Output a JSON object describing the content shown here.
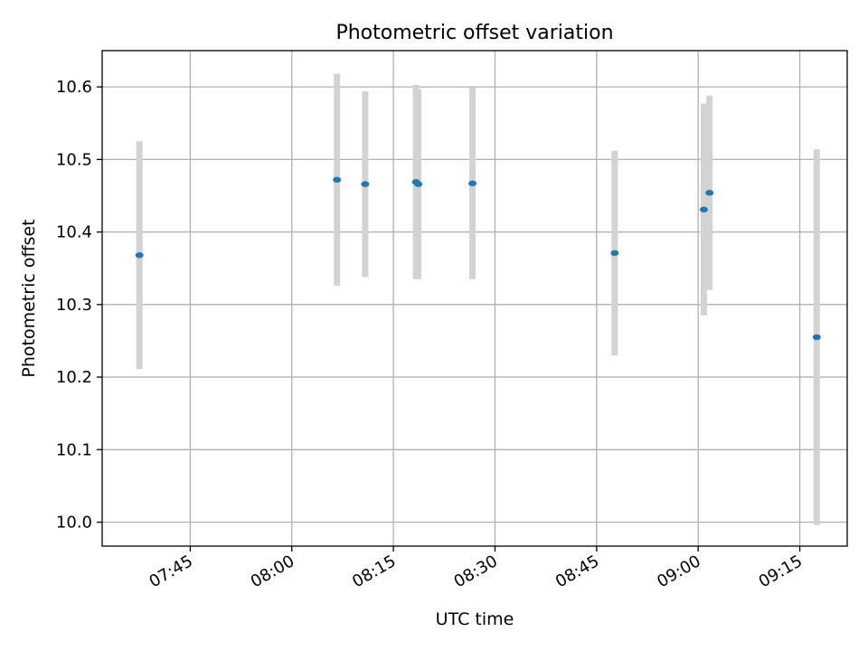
{
  "chart_data": {
    "type": "scatter",
    "title": "Photometric offset variation",
    "xlabel": "UTC time",
    "ylabel": "Photometric offset",
    "x_is_time": true,
    "xlim": [
      "07:32",
      "09:22"
    ],
    "ylim": [
      9.967,
      10.65
    ],
    "x_ticks": [
      "07:45",
      "08:00",
      "08:15",
      "08:30",
      "08:45",
      "09:00",
      "09:15"
    ],
    "y_ticks": [
      "10.0",
      "10.1",
      "10.2",
      "10.3",
      "10.4",
      "10.5",
      "10.6"
    ],
    "grid": true,
    "colors": {
      "points": "#1f77b4",
      "error_bars": "#d3d3d3"
    },
    "points": [
      {
        "x": "07:37:30",
        "y": 10.368,
        "err": 0.157
      },
      {
        "x": "08:06:40",
        "y": 10.472,
        "err": 0.146
      },
      {
        "x": "08:10:50",
        "y": 10.466,
        "err": 0.128
      },
      {
        "x": "08:18:20",
        "y": 10.469,
        "err": 0.134
      },
      {
        "x": "08:18:40",
        "y": 10.466,
        "err": 0.131
      },
      {
        "x": "08:26:40",
        "y": 10.467,
        "err": 0.132
      },
      {
        "x": "08:47:40",
        "y": 10.371,
        "err": 0.141
      },
      {
        "x": "09:00:50",
        "y": 10.431,
        "err": 0.146
      },
      {
        "x": "09:01:40",
        "y": 10.454,
        "err": 0.134
      },
      {
        "x": "09:17:30",
        "y": 10.255,
        "err": 0.259
      }
    ]
  }
}
